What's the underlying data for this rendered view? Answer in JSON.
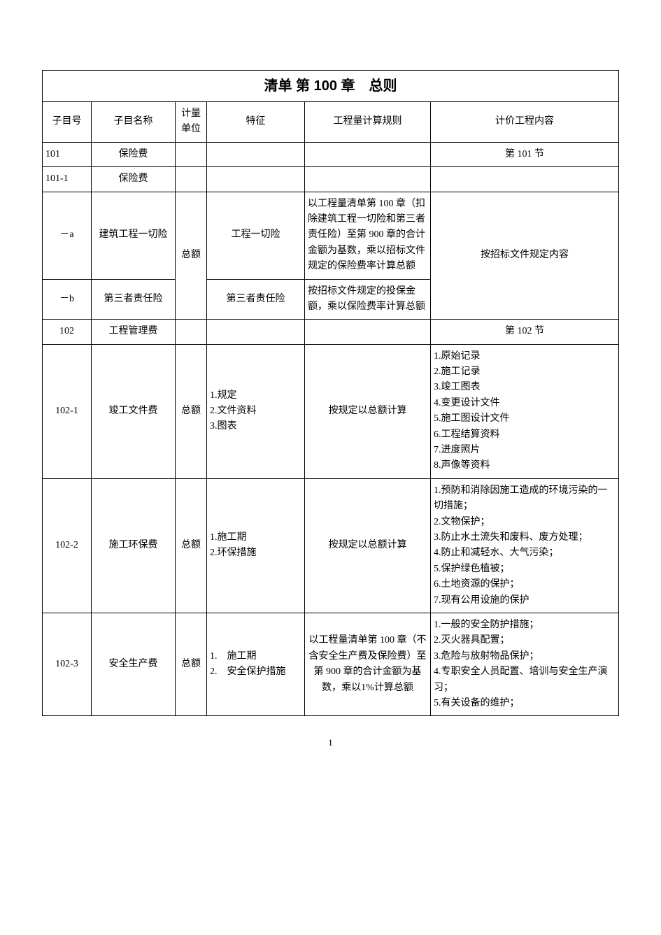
{
  "title": "清单 第 100 章　总则",
  "headers": {
    "code": "子目号",
    "name": "子目名称",
    "unit": "计量单位",
    "feature": "特征",
    "rule": "工程量计算规则",
    "content": "计价工程内容"
  },
  "rows": {
    "r101": {
      "code": "101",
      "name": "保险费",
      "content": "第 101 节"
    },
    "r101_1": {
      "code": "101-1",
      "name": "保险费"
    },
    "r_a": {
      "code": "－a",
      "name": "建筑工程一切险",
      "unit": "总额",
      "feature": "工程一切险",
      "rule": "以工程量清单第 100 章（扣除建筑工程一切险和第三者责任险）至第 900 章的合计金额为基数，乘以招标文件规定的保险费率计算总额",
      "content": "按招标文件规定内容"
    },
    "r_b": {
      "code": "－b",
      "name": "第三者责任险",
      "feature": "第三者责任险",
      "rule": "按招标文件规定的投保金额，乘以保险费率计算总额"
    },
    "r102": {
      "code": "102",
      "name": "工程管理费",
      "content": "第 102 节"
    },
    "r102_1": {
      "code": "102-1",
      "name": "竣工文件费",
      "unit": "总额",
      "feature_lines": [
        "1.规定",
        "2.文件资料",
        "3.图表"
      ],
      "rule": "按规定以总额计算",
      "content_lines": [
        "1.原始记录",
        "2.施工记录",
        "3.竣工图表",
        "4.变更设计文件",
        "5.施工图设计文件",
        "6.工程结算资料",
        "7.进度照片",
        "8.声像等资料"
      ]
    },
    "r102_2": {
      "code": "102-2",
      "name": "施工环保费",
      "unit": "总额",
      "feature_lines": [
        "1.施工期",
        "2.环保措施"
      ],
      "rule": "按规定以总额计算",
      "content_lines": [
        "1.预防和消除因施工造成的环境污染的一切措施；",
        "2.文物保护；",
        "3.防止水土流失和废料、废方处理；",
        "4.防止和减轻水、大气污染；",
        "5.保护绿色植被；",
        "6.土地资源的保护；",
        "7.现有公用设施的保护"
      ]
    },
    "r102_3": {
      "code": "102-3",
      "name": "安全生产费",
      "unit": "总额",
      "feature_lines": [
        "1.　施工期",
        "2.　安全保护措施"
      ],
      "rule": "以工程量清单第 100 章（不含安全生产费及保险费）至第 900 章的合计金额为基数，乘以1%计算总额",
      "content_lines": [
        "1.一般的安全防护措施；",
        "2.灭火器具配置；",
        "3.危险与放射物品保护；",
        "4.专职安全人员配置、培训与安全生产演习；",
        "5.有关设备的维护；"
      ]
    }
  },
  "page_number": "1"
}
